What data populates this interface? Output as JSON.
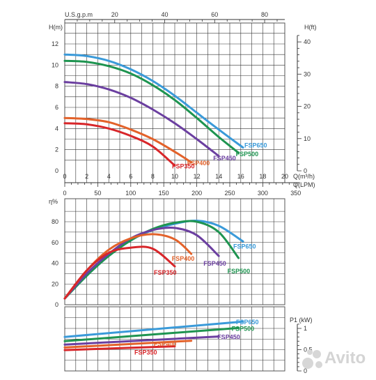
{
  "charts": {
    "head": {
      "top_axis": {
        "label": "U.S.g.p.m",
        "ticks": [
          "20",
          "40",
          "60",
          "80"
        ],
        "values": [
          20,
          40,
          60,
          80
        ]
      },
      "left_axis": {
        "label": "H(m)",
        "ticks": [
          "0",
          "2",
          "4",
          "6",
          "8",
          "10",
          "12"
        ],
        "values": [
          0,
          2,
          4,
          6,
          8,
          10,
          12
        ]
      },
      "right_axis": {
        "label": "H(ft)",
        "ticks": [
          "0",
          "10",
          "20",
          "30",
          "40"
        ],
        "values": [
          0,
          10,
          20,
          30,
          40
        ]
      },
      "bottom_axis1": {
        "label": "Q(m³/h)",
        "ticks": [
          "0",
          "2",
          "4",
          "6",
          "8",
          "10",
          "12",
          "14",
          "16",
          "18",
          "20"
        ],
        "values": [
          0,
          2,
          4,
          6,
          8,
          10,
          12,
          14,
          16,
          18,
          20
        ]
      },
      "bottom_axis2": {
        "label": "Q(LPM)",
        "ticks": [
          "0",
          "50",
          "100",
          "150",
          "200",
          "250",
          "300",
          "350"
        ],
        "values": [
          0,
          50,
          100,
          150,
          200,
          250,
          300,
          350
        ]
      }
    },
    "efficiency": {
      "left_axis": {
        "label": "η%",
        "ticks": [
          "0",
          "20",
          "40",
          "60",
          "80"
        ],
        "values": [
          0,
          20,
          40,
          60,
          80
        ]
      }
    },
    "power": {
      "right_axis": {
        "label": "P1 (kW)",
        "ticks": [
          "0",
          "0,5",
          "1"
        ],
        "values": [
          0,
          0.5,
          1
        ]
      }
    }
  },
  "watermark": "Avito",
  "chart_data": [
    {
      "type": "line",
      "xlabel": "Q(m³/h)",
      "ylabel": "H(m)",
      "xlim": [
        0,
        20
      ],
      "ylim": [
        0,
        13
      ],
      "series": [
        {
          "name": "FSP650",
          "color": "#3a9ad9",
          "x": [
            0,
            2,
            4,
            6,
            8,
            10,
            12,
            14,
            16.2
          ],
          "y": [
            11.0,
            10.85,
            10.4,
            9.6,
            8.5,
            7.1,
            5.5,
            3.9,
            2.2
          ]
        },
        {
          "name": "FSP500",
          "color": "#1e9450",
          "x": [
            0,
            2,
            4,
            6,
            8,
            10,
            12,
            14,
            15.8
          ],
          "y": [
            10.4,
            10.3,
            9.9,
            9.2,
            8.1,
            6.7,
            5.0,
            3.2,
            1.7
          ]
        },
        {
          "name": "FSP450",
          "color": "#6b3fa0",
          "x": [
            0,
            2,
            4,
            6,
            8,
            10,
            12,
            14.0
          ],
          "y": [
            8.4,
            8.2,
            7.7,
            6.9,
            5.8,
            4.5,
            3.0,
            1.4
          ]
        },
        {
          "name": "FSP400",
          "color": "#e3622a",
          "x": [
            0,
            2,
            4,
            6,
            8,
            10,
            11.5
          ],
          "y": [
            5.0,
            4.9,
            4.6,
            3.9,
            3.0,
            1.8,
            0.8
          ]
        },
        {
          "name": "FSP350",
          "color": "#d8262a",
          "x": [
            0,
            2,
            4,
            6,
            8,
            10.0
          ],
          "y": [
            4.5,
            4.4,
            4.0,
            3.3,
            2.3,
            0.5
          ]
        }
      ]
    },
    {
      "type": "line",
      "ylabel": "η%",
      "xlim": [
        0,
        20
      ],
      "ylim": [
        0,
        90
      ],
      "series": [
        {
          "name": "FSP650",
          "color": "#3a9ad9",
          "x": [
            0,
            2,
            4,
            6,
            8,
            10,
            12,
            14,
            16.2
          ],
          "y": [
            6,
            28,
            47,
            62,
            72,
            78,
            81,
            76,
            61
          ]
        },
        {
          "name": "FSP500",
          "color": "#1e9450",
          "x": [
            0,
            2,
            4,
            6,
            8,
            10,
            12,
            14,
            15.8
          ],
          "y": [
            6,
            28,
            47,
            62,
            73,
            79,
            80,
            70,
            45
          ]
        },
        {
          "name": "FSP450",
          "color": "#6b3fa0",
          "x": [
            0,
            2,
            4,
            6,
            8,
            10,
            12,
            14.0
          ],
          "y": [
            6,
            30,
            49,
            64,
            72,
            74,
            67,
            47
          ]
        },
        {
          "name": "FSP400",
          "color": "#e3622a",
          "x": [
            0,
            2,
            4,
            6,
            8,
            10,
            11.5
          ],
          "y": [
            6,
            33,
            53,
            64,
            68,
            63,
            49
          ]
        },
        {
          "name": "FSP350",
          "color": "#d8262a",
          "x": [
            0,
            2,
            4,
            6,
            8,
            10.0
          ],
          "y": [
            6,
            33,
            50,
            55,
            54,
            37
          ]
        }
      ]
    },
    {
      "type": "line",
      "ylabel": "P1 (kW)",
      "xlim": [
        0,
        20
      ],
      "ylim": [
        0,
        1.25
      ],
      "series": [
        {
          "name": "FSP650",
          "color": "#3a9ad9",
          "x": [
            0,
            16.2
          ],
          "y": [
            0.8,
            1.16
          ]
        },
        {
          "name": "FSP500",
          "color": "#1e9450",
          "x": [
            0,
            15.8
          ],
          "y": [
            0.7,
            1.01
          ]
        },
        {
          "name": "FSP450",
          "color": "#6b3fa0",
          "x": [
            0,
            14.0
          ],
          "y": [
            0.62,
            0.81
          ]
        },
        {
          "name": "FSP400",
          "color": "#e3622a",
          "x": [
            0,
            11.5
          ],
          "y": [
            0.55,
            0.71
          ]
        },
        {
          "name": "FSP350",
          "color": "#d8262a",
          "x": [
            0,
            10.0
          ],
          "y": [
            0.49,
            0.58
          ]
        }
      ]
    }
  ]
}
